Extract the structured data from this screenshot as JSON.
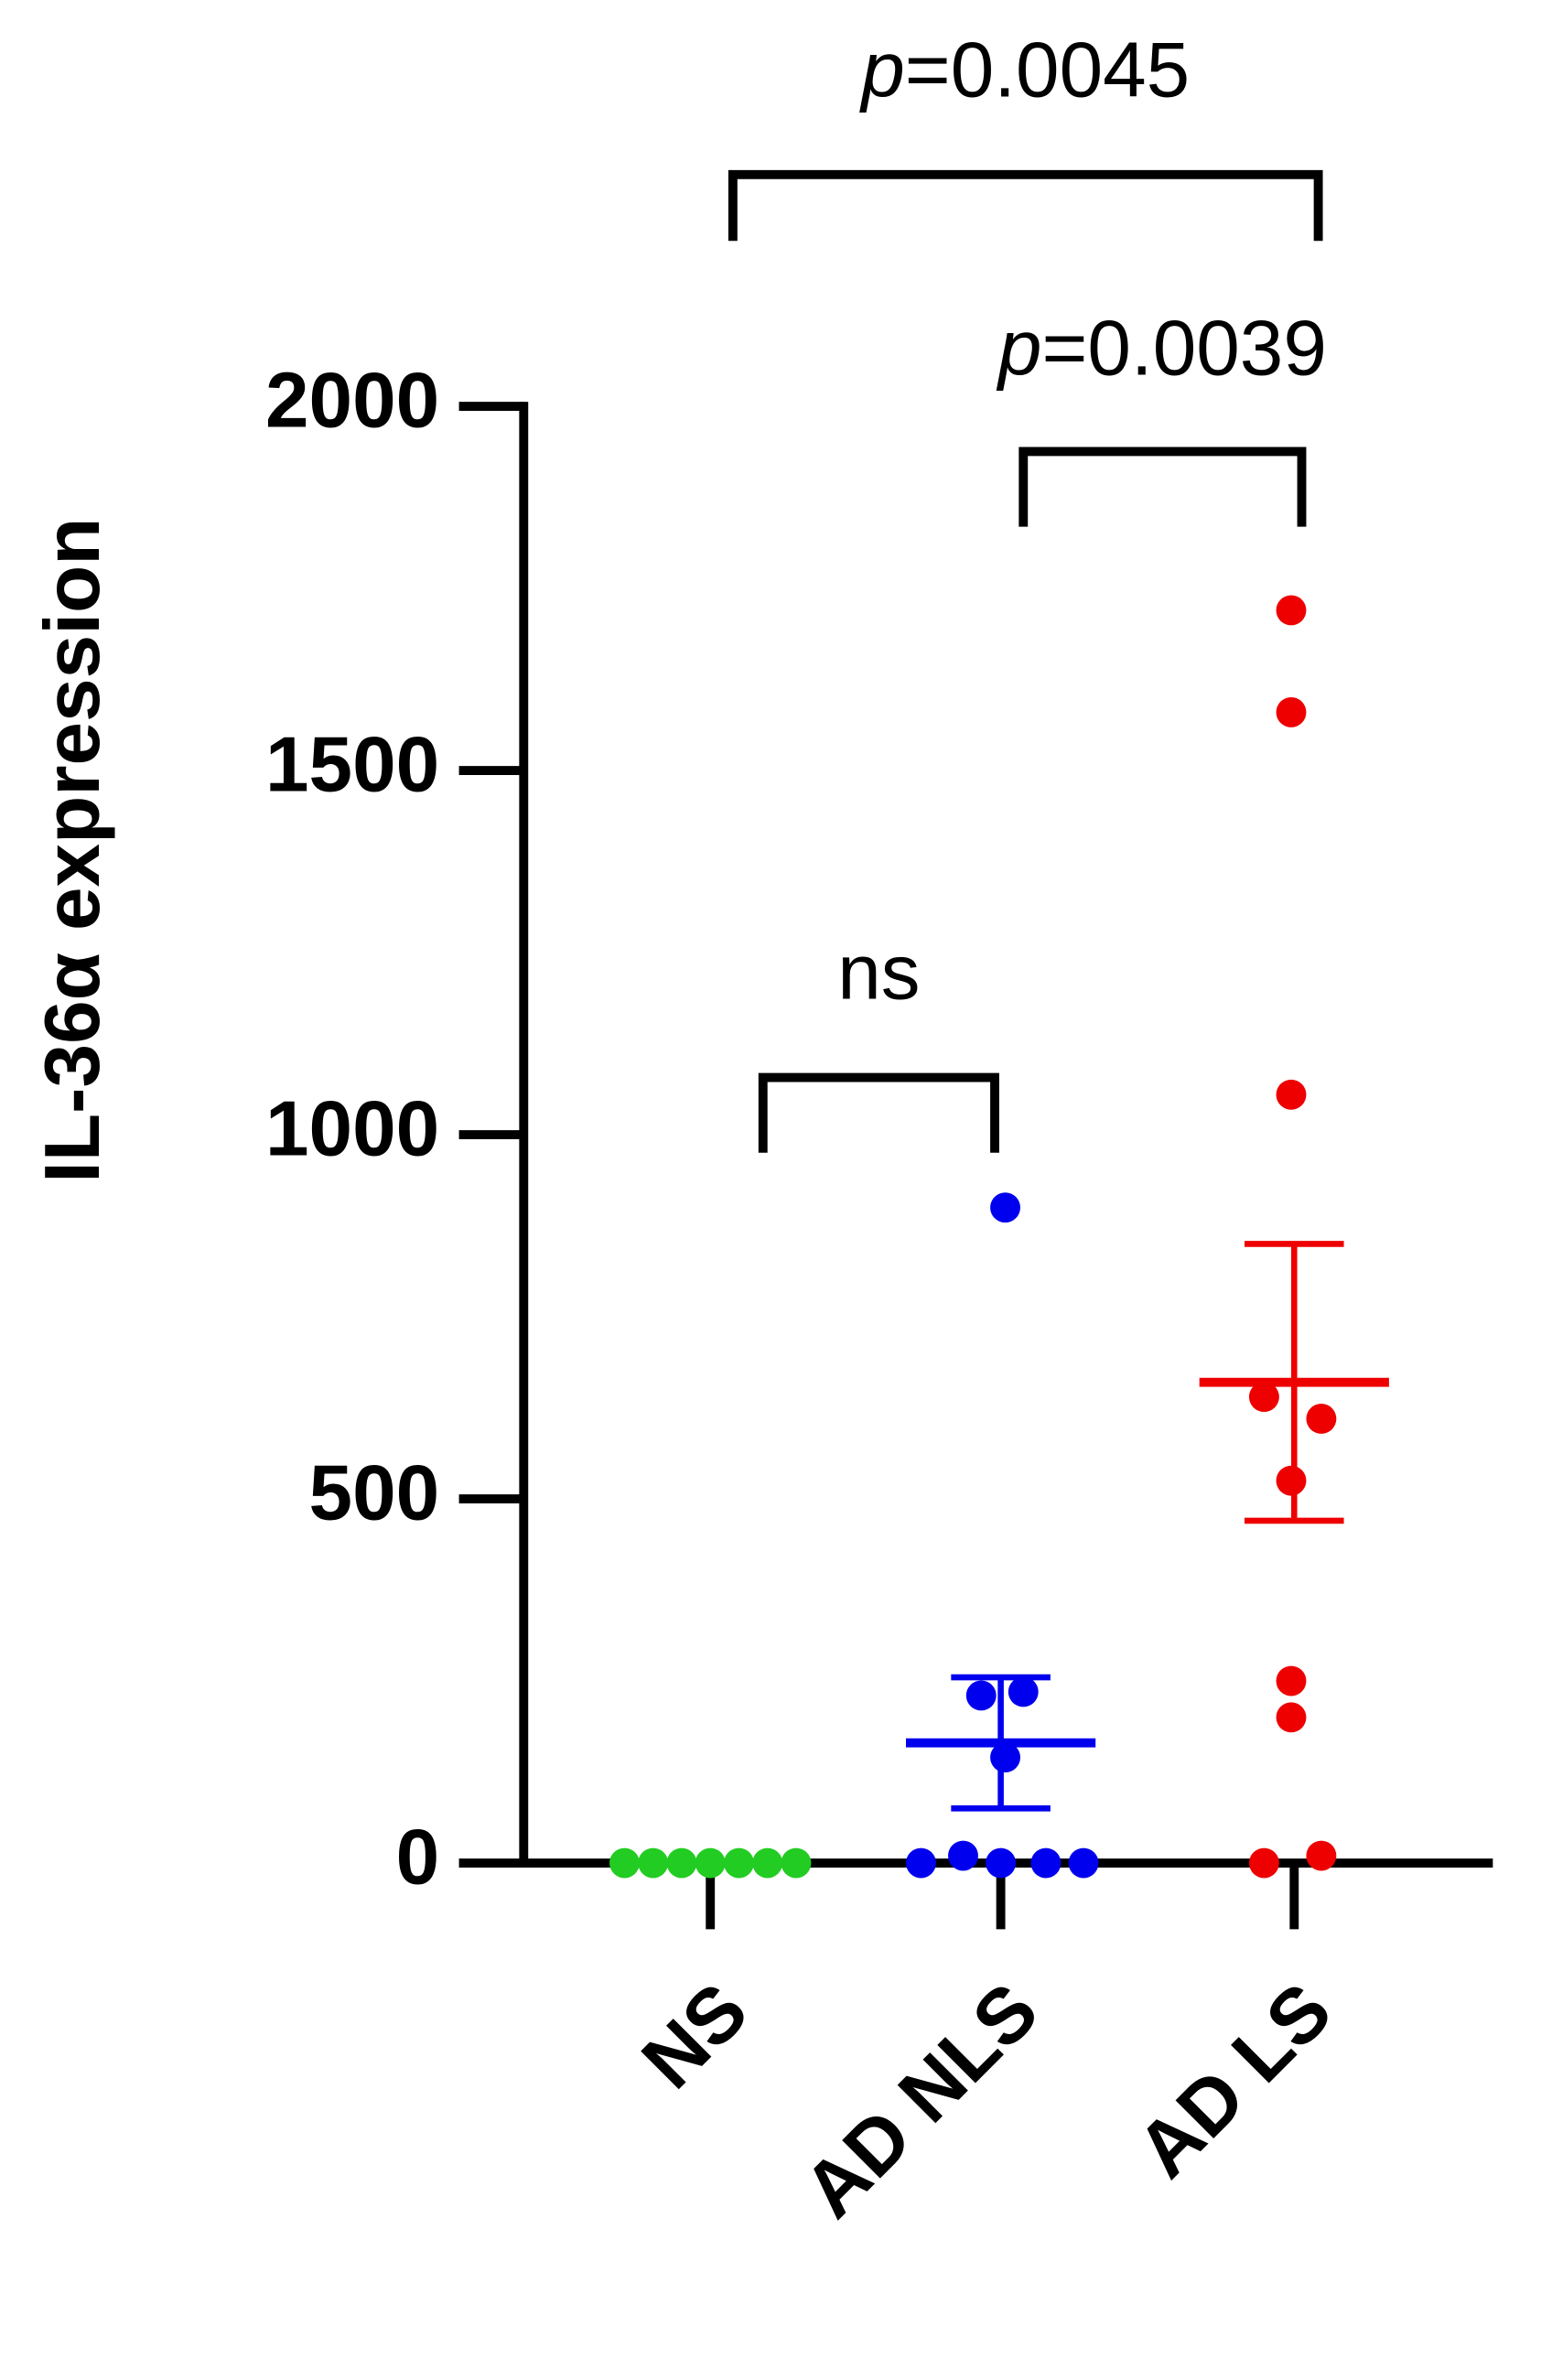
{
  "chart_data": {
    "type": "scatter",
    "y_label": "IL-36α expression",
    "categories": [
      "NS",
      "AD NLS",
      "AD LS"
    ],
    "ylim": [
      0,
      2000
    ],
    "yticks": [
      0,
      500,
      1000,
      1500,
      2000
    ],
    "series": [
      {
        "color": "#22cc22",
        "values": [
          0,
          0,
          0,
          0,
          0,
          0,
          0
        ]
      },
      {
        "color": "#0000ee",
        "values": [
          900,
          235,
          230,
          145,
          10,
          0,
          0,
          0,
          0
        ],
        "mean": 165,
        "error": 90
      },
      {
        "color": "#ee0000",
        "values": [
          1720,
          1580,
          1055,
          640,
          610,
          525,
          250,
          200,
          0,
          10
        ],
        "mean": 660,
        "error": 190
      }
    ],
    "comparisons": [
      {
        "label": "p=0.0045",
        "from": 0,
        "to": 2
      },
      {
        "label": "p=0.0039",
        "from": 1,
        "to": 2
      },
      {
        "label": "ns",
        "from": 0,
        "to": 1
      }
    ]
  }
}
